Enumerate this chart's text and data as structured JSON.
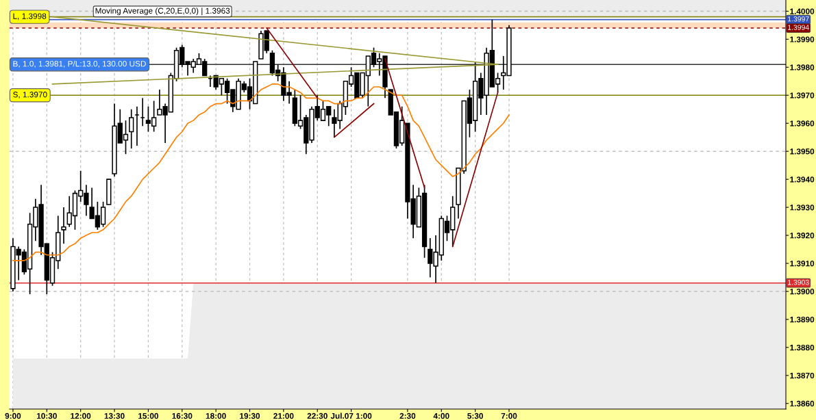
{
  "chart_data": {
    "type": "candlestick",
    "categories": [
      "9:00",
      null,
      null,
      null,
      null,
      null,
      "10:30",
      null,
      null,
      null,
      null,
      null,
      "12:00",
      null,
      null,
      null,
      null,
      null,
      "13:30",
      null,
      null,
      null,
      null,
      null,
      "15:00",
      null,
      null,
      null,
      null,
      null,
      "16:30",
      null,
      null,
      null,
      null,
      null,
      "18:00",
      null,
      null,
      null,
      null,
      null,
      "19:30",
      null,
      null,
      null,
      null,
      null,
      "21:00",
      null,
      null,
      null,
      null,
      null,
      "22:30",
      null,
      null,
      null,
      null,
      null,
      "Jul.07 1:00",
      null,
      null,
      null,
      null,
      null,
      null,
      null,
      null,
      null,
      "2:30",
      null,
      null,
      null,
      null,
      null,
      "4:00",
      null,
      null,
      null,
      null,
      null,
      "5:30",
      null,
      null,
      null,
      null,
      null,
      "7:00",
      null,
      null,
      null,
      null,
      null,
      null,
      null,
      null,
      null,
      null,
      null,
      null,
      null,
      null,
      null,
      null,
      null,
      null,
      null,
      null,
      null,
      null,
      null,
      null,
      null,
      null,
      null,
      null,
      null,
      null,
      null,
      null,
      null,
      null,
      null,
      null,
      null,
      null,
      null,
      null,
      null,
      null,
      null,
      null,
      null,
      null,
      null,
      null,
      null
    ],
    "ohlc": [
      [
        1.3901,
        1.3919,
        1.39,
        1.3916
      ],
      [
        1.3915,
        1.3916,
        1.3904,
        1.3913
      ],
      [
        1.3914,
        1.3915,
        1.3906,
        1.3907
      ],
      [
        1.3908,
        1.3928,
        1.3899,
        1.3924
      ],
      [
        1.3923,
        1.3933,
        1.3918,
        1.393
      ],
      [
        1.3931,
        1.3938,
        1.3913,
        1.3916
      ],
      [
        1.3917,
        1.3917,
        1.3899,
        1.3904
      ],
      [
        1.3903,
        1.3914,
        1.3902,
        1.3912
      ],
      [
        1.3911,
        1.3927,
        1.3908,
        1.3921
      ],
      [
        1.3922,
        1.393,
        1.3917,
        1.3923
      ],
      [
        1.3924,
        1.3934,
        1.3923,
        1.3928
      ],
      [
        1.3927,
        1.3936,
        1.3922,
        1.3935
      ],
      [
        1.3934,
        1.3943,
        1.3932,
        1.3936
      ],
      [
        1.3935,
        1.3938,
        1.3927,
        1.3931
      ],
      [
        1.393,
        1.3937,
        1.3926,
        1.3926
      ],
      [
        1.3927,
        1.3932,
        1.3922,
        1.3923
      ],
      [
        1.3924,
        1.3932,
        1.3923,
        1.393
      ],
      [
        1.3931,
        1.394,
        1.3931,
        1.394
      ],
      [
        1.3942,
        1.3967,
        1.3941,
        1.3959
      ],
      [
        1.396,
        1.3965,
        1.3953,
        1.3953
      ],
      [
        1.3954,
        1.3961,
        1.3949,
        1.3956
      ],
      [
        1.3957,
        1.3965,
        1.3951,
        1.3962
      ],
      [
        1.3963,
        1.3966,
        1.3952,
        1.3963
      ],
      [
        1.3962,
        1.3969,
        1.3959,
        1.3962
      ],
      [
        1.3961,
        1.3966,
        1.3957,
        1.396
      ],
      [
        1.3959,
        1.3968,
        1.3957,
        1.3962
      ],
      [
        1.3963,
        1.3972,
        1.3963,
        1.3965
      ],
      [
        1.3966,
        1.3967,
        1.3953,
        1.3963
      ],
      [
        1.3964,
        1.3978,
        1.3964,
        1.3977
      ],
      [
        1.3976,
        1.3987,
        1.3975,
        1.3986
      ],
      [
        1.3987,
        1.3988,
        1.398,
        1.3981
      ],
      [
        1.3982,
        1.3982,
        1.3977,
        1.3981
      ],
      [
        1.398,
        1.3983,
        1.3978,
        1.3982
      ],
      [
        1.3981,
        1.3985,
        1.3981,
        1.3983
      ],
      [
        1.3982,
        1.3983,
        1.3977,
        1.3977
      ],
      [
        1.3976,
        1.3977,
        1.3973,
        1.3976
      ],
      [
        1.3977,
        1.3977,
        1.3972,
        1.3973
      ],
      [
        1.3974,
        1.3976,
        1.397,
        1.3976
      ],
      [
        1.3975,
        1.3976,
        1.3967,
        1.3971
      ],
      [
        1.3972,
        1.3972,
        1.3964,
        1.3966
      ],
      [
        1.3965,
        1.3976,
        1.3965,
        1.3975
      ],
      [
        1.3974,
        1.3975,
        1.3971,
        1.3972
      ],
      [
        1.3973,
        1.3976,
        1.3965,
        1.3968
      ],
      [
        1.3967,
        1.3982,
        1.3967,
        1.3982
      ],
      [
        1.3983,
        1.3993,
        1.3983,
        1.3992
      ],
      [
        1.3993,
        1.3993,
        1.3985,
        1.3986
      ],
      [
        1.3985,
        1.3986,
        1.3977,
        1.3978
      ],
      [
        1.3979,
        1.3981,
        1.3975,
        1.3977
      ],
      [
        1.3978,
        1.398,
        1.3968,
        1.397
      ],
      [
        1.3971,
        1.3975,
        1.3967,
        1.397
      ],
      [
        1.3969,
        1.3972,
        1.3959,
        1.396
      ],
      [
        1.3959,
        1.397,
        1.3958,
        1.3961
      ],
      [
        1.3962,
        1.3963,
        1.3949,
        1.3953
      ],
      [
        1.3954,
        1.3966,
        1.3953,
        1.3965
      ],
      [
        1.3966,
        1.397,
        1.3961,
        1.3962
      ],
      [
        1.3961,
        1.3968,
        1.3961,
        1.3965
      ],
      [
        1.3966,
        1.3966,
        1.3959,
        1.3963
      ],
      [
        1.3962,
        1.3965,
        1.3955,
        1.396
      ],
      [
        1.3961,
        1.3968,
        1.3958,
        1.3967
      ],
      [
        1.3966,
        1.3975,
        1.3963,
        1.3975
      ],
      [
        1.3974,
        1.398,
        1.3973,
        1.3977
      ],
      [
        1.3978,
        1.3978,
        1.3969,
        1.3969
      ],
      [
        1.397,
        1.3978,
        1.3969,
        1.3978
      ],
      [
        1.3977,
        1.3984,
        1.3966,
        1.3984
      ],
      [
        1.3985,
        1.3987,
        1.398,
        1.3981
      ],
      [
        1.3982,
        1.3985,
        1.3977,
        1.3983
      ],
      [
        1.3984,
        1.3984,
        1.3969,
        1.3973
      ],
      [
        1.3972,
        1.3972,
        1.3963,
        1.3963
      ],
      [
        1.3964,
        1.3964,
        1.3951,
        1.3952
      ],
      [
        1.3953,
        1.3966,
        1.3952,
        1.3961
      ],
      [
        1.396,
        1.396,
        1.3926,
        1.3932
      ],
      [
        1.3933,
        1.3938,
        1.3919,
        1.3924
      ],
      [
        1.3923,
        1.3937,
        1.3923,
        1.3934
      ],
      [
        1.3935,
        1.3938,
        1.3912,
        1.3916
      ],
      [
        1.3915,
        1.3919,
        1.3905,
        1.391
      ],
      [
        1.3909,
        1.392,
        1.3903,
        1.3914
      ],
      [
        1.3913,
        1.3927,
        1.3911,
        1.3926
      ],
      [
        1.3925,
        1.3927,
        1.3918,
        1.3921
      ],
      [
        1.3922,
        1.3934,
        1.3916,
        1.393
      ],
      [
        1.3931,
        1.3944,
        1.3926,
        1.3944
      ],
      [
        1.3943,
        1.3968,
        1.3942,
        1.3968
      ],
      [
        1.3969,
        1.3972,
        1.3955,
        1.396
      ],
      [
        1.3961,
        1.3982,
        1.3957,
        1.3975
      ],
      [
        1.3976,
        1.3978,
        1.3963,
        1.3969
      ],
      [
        1.397,
        1.3987,
        1.3963,
        1.3985
      ],
      [
        1.3986,
        1.3997,
        1.3973,
        1.3973
      ],
      [
        1.3974,
        1.3978,
        1.3971,
        1.3976
      ],
      [
        1.3977,
        1.3984,
        1.3972,
        1.3978
      ],
      [
        1.3977,
        1.3995,
        1.3977,
        1.3994
      ],
      null,
      null,
      null,
      null,
      null,
      null,
      null,
      null,
      null,
      null,
      null,
      null,
      null,
      null,
      null,
      null,
      null,
      null,
      null,
      null,
      null,
      null,
      null,
      null,
      null,
      null,
      null,
      null,
      null,
      null,
      null,
      null,
      null,
      null,
      null,
      null,
      null,
      null,
      null,
      null,
      null,
      null,
      null,
      null,
      null,
      null,
      null,
      null,
      null
    ],
    "series": [
      {
        "type": "area",
        "color": "#ececec",
        "values": [
          1.3876,
          1.3876,
          1.3876,
          1.3876,
          1.3876,
          1.3876,
          1.3876,
          1.3876,
          1.3876,
          1.3876,
          1.3876,
          1.3876,
          1.3876,
          1.3876,
          1.3876,
          1.3876,
          1.3876,
          1.3876,
          1.3876,
          1.3876,
          1.3876,
          1.3876,
          1.3876,
          1.3876,
          1.3876,
          1.3876,
          1.3876,
          1.3876,
          1.3876,
          1.3876,
          1.3876,
          1.3876,
          1.3903,
          1.3903,
          1.3903,
          1.3903,
          1.3903,
          1.3903,
          1.3903,
          1.3903,
          1.3903,
          1.3903,
          1.3903,
          1.3903,
          1.3903,
          1.3903,
          1.3903,
          1.3903,
          1.3903,
          1.3903,
          1.3903,
          1.3903,
          1.3903,
          1.3903,
          1.3903,
          1.3903,
          1.3903,
          1.3903,
          1.3903,
          1.3903,
          1.3903,
          1.3903,
          1.3903,
          1.3903,
          1.3903,
          1.3903,
          1.3903,
          1.3903,
          1.3903,
          1.3903,
          1.3903,
          1.3903,
          1.3903,
          1.3903,
          1.3903,
          1.3903,
          1.3903,
          1.3903,
          1.3903,
          1.3903,
          1.3903,
          1.3903,
          1.3903,
          1.3903,
          1.3903,
          1.3903,
          1.3903,
          1.3903,
          1.3903,
          1.3903,
          1.3903,
          1.3903,
          1.3903,
          1.3903,
          1.3903,
          1.3903,
          1.3903,
          1.3903,
          1.3903,
          1.3903,
          1.3903,
          1.3903,
          1.3903,
          1.3903,
          1.3903,
          1.3903,
          1.3903,
          1.3903,
          1.3903,
          1.3903,
          1.3903,
          1.3903,
          1.3903,
          1.3903,
          1.3903,
          1.3903,
          1.3903,
          1.3903,
          1.3903,
          1.3903,
          1.3903,
          1.3903,
          1.3903,
          1.3903,
          1.3903,
          1.3903,
          1.3903,
          1.3903,
          1.3903,
          1.3903,
          1.3903,
          1.3903,
          1.3903,
          1.3903,
          1.3903,
          1.3903,
          1.3903,
          1.3903
        ]
      },
      {
        "type": "line",
        "color": "#ff8000",
        "values": [
          1.3911,
          1.3911,
          1.3911,
          1.3912,
          1.3914,
          1.3914,
          1.3913,
          1.3913,
          1.3913,
          1.3914,
          1.3916,
          1.3917,
          1.3919,
          1.392,
          1.3921,
          1.3921,
          1.3922,
          1.3924,
          1.3926,
          1.3929,
          1.3932,
          1.3934,
          1.3937,
          1.394,
          1.3942,
          1.3944,
          1.3946,
          1.3949,
          1.3952,
          1.3955,
          1.3957,
          1.396,
          1.3961,
          1.3963,
          1.3964,
          1.3966,
          1.3967,
          1.3967,
          1.3968,
          1.3967,
          1.3968,
          1.3968,
          1.3968,
          1.397,
          1.3972,
          1.3973,
          1.3974,
          1.3974,
          1.3973,
          1.3973,
          1.3972,
          1.3971,
          1.3969,
          1.3969,
          1.3969,
          1.3968,
          1.3968,
          1.3967,
          1.3967,
          1.3968,
          1.3968,
          1.3969,
          1.3969,
          1.3971,
          1.3973,
          1.3973,
          1.3972,
          1.3971,
          1.397,
          1.397,
          1.3966,
          1.3961,
          1.3959,
          1.3955,
          1.3951,
          1.3947,
          1.3945,
          1.3943,
          1.3941,
          1.3942,
          1.3944,
          1.3946,
          1.3949,
          1.3951,
          1.3954,
          1.3956,
          1.3958,
          1.396,
          1.3963,
          null,
          null,
          null,
          null,
          null,
          null,
          null,
          null,
          null,
          null,
          null,
          null,
          null,
          null,
          null,
          null,
          null,
          null,
          null,
          null,
          null,
          null,
          null,
          null,
          null,
          null,
          null,
          null,
          null,
          null,
          null,
          null,
          null,
          null,
          null,
          null,
          null,
          null,
          null,
          null,
          null,
          null,
          null,
          null,
          null,
          null,
          null,
          null,
          null
        ]
      },
      {
        "type": "line",
        "color": "#999933",
        "values": [
          null,
          null,
          null,
          null,
          null,
          null,
          null,
          1.3998,
          null,
          null,
          null,
          null,
          null,
          null,
          null,
          null,
          null,
          null,
          null,
          null,
          null,
          null,
          null,
          null,
          null,
          null,
          null,
          null,
          null,
          null,
          null,
          null,
          null,
          null,
          null,
          null,
          null,
          null,
          null,
          null,
          null,
          null,
          null,
          null,
          null,
          null,
          null,
          null,
          null,
          null,
          null,
          null,
          null,
          null,
          null,
          null,
          null,
          null,
          null,
          null,
          null,
          null,
          null,
          null,
          null,
          null,
          null,
          null,
          null,
          null,
          null,
          null,
          null,
          null,
          null,
          null,
          null,
          null,
          null,
          null,
          null,
          null,
          null,
          null,
          null,
          null,
          1.3981,
          null,
          null,
          null,
          null,
          null,
          null,
          null,
          null,
          null,
          null,
          null,
          null,
          null,
          null,
          null,
          null,
          null,
          null,
          null,
          null,
          null,
          null,
          null,
          null,
          null,
          null,
          null,
          null,
          null,
          null,
          null,
          null,
          null,
          null,
          null,
          null,
          null,
          null,
          null,
          null,
          null,
          null,
          null,
          null,
          null,
          null,
          null,
          null,
          null,
          null,
          null
        ]
      },
      {
        "type": "line",
        "color": "#999933",
        "values": [
          null,
          null,
          null,
          null,
          null,
          null,
          null,
          1.3974,
          null,
          null,
          null,
          null,
          null,
          null,
          null,
          null,
          null,
          null,
          null,
          null,
          null,
          null,
          null,
          null,
          null,
          null,
          null,
          null,
          null,
          null,
          null,
          null,
          null,
          null,
          null,
          null,
          null,
          null,
          null,
          null,
          null,
          null,
          null,
          null,
          null,
          null,
          null,
          null,
          null,
          null,
          null,
          null,
          null,
          null,
          null,
          null,
          null,
          null,
          null,
          null,
          null,
          null,
          null,
          null,
          null,
          null,
          null,
          null,
          null,
          null,
          null,
          null,
          null,
          null,
          null,
          null,
          null,
          null,
          null,
          null,
          null,
          null,
          null,
          null,
          null,
          null,
          1.3981,
          null,
          null,
          null,
          null,
          null,
          null,
          null,
          null,
          null,
          null,
          null,
          null,
          null,
          null,
          null,
          null,
          null,
          null,
          null,
          null,
          null,
          null,
          null,
          null,
          null,
          null,
          null,
          null,
          null,
          null,
          null,
          null,
          null,
          null,
          null,
          null,
          null,
          null,
          null,
          null,
          null,
          null,
          null,
          null,
          null,
          null,
          null,
          null,
          null,
          null,
          null
        ]
      },
      {
        "type": "line",
        "color": "#8b0000",
        "values": [
          null,
          null,
          null,
          null,
          null,
          null,
          null,
          null,
          null,
          null,
          null,
          null,
          null,
          null,
          null,
          null,
          null,
          null,
          null,
          null,
          null,
          null,
          null,
          null,
          null,
          null,
          null,
          null,
          null,
          null,
          null,
          null,
          null,
          null,
          null,
          null,
          null,
          null,
          null,
          null,
          null,
          null,
          null,
          null,
          null,
          1.3994,
          null,
          null,
          null,
          null,
          null,
          null,
          null,
          null,
          1.3969,
          null,
          null,
          null,
          null,
          null,
          null,
          null,
          null,
          null,
          null,
          null,
          null,
          null,
          null,
          null,
          null,
          null,
          null,
          null,
          null,
          null,
          null,
          null,
          null,
          null,
          null,
          null,
          null,
          null,
          null,
          null,
          null,
          null,
          null,
          null,
          null,
          null,
          null,
          null,
          null,
          null,
          null,
          null,
          null,
          null,
          null,
          null,
          null,
          null,
          null,
          null,
          null,
          null,
          null,
          null,
          null,
          null,
          null,
          null,
          null,
          null,
          null,
          null,
          null,
          null,
          null,
          null,
          null,
          null,
          null,
          null,
          null,
          null,
          null,
          null,
          null,
          null,
          null,
          null,
          null,
          null,
          null,
          null
        ]
      },
      {
        "type": "line",
        "color": "#8b0000",
        "values": [
          null,
          null,
          null,
          null,
          null,
          null,
          null,
          null,
          null,
          null,
          null,
          null,
          null,
          null,
          null,
          null,
          null,
          null,
          null,
          null,
          null,
          null,
          null,
          null,
          null,
          null,
          null,
          null,
          null,
          null,
          null,
          null,
          null,
          null,
          null,
          null,
          null,
          null,
          null,
          null,
          null,
          null,
          null,
          null,
          null,
          null,
          null,
          null,
          null,
          null,
          null,
          null,
          null,
          null,
          null,
          null,
          null,
          1.3955,
          null,
          null,
          null,
          null,
          null,
          null,
          1.3967,
          null,
          null,
          null,
          null,
          null,
          null,
          null,
          null,
          null,
          null,
          null,
          null,
          null,
          null,
          null,
          null,
          null,
          null,
          null,
          null,
          null,
          null,
          null,
          null,
          null,
          null,
          null,
          null,
          null,
          null,
          null,
          null,
          null,
          null,
          null,
          null,
          null,
          null,
          null,
          null,
          null,
          null,
          null,
          null,
          null,
          null,
          null,
          null,
          null,
          null,
          null,
          null,
          null,
          null,
          null,
          null,
          null,
          null,
          null,
          null,
          null,
          null,
          null,
          null,
          null,
          null,
          null,
          null,
          null,
          null,
          null,
          null,
          null
        ]
      },
      {
        "type": "line",
        "color": "#8b0000",
        "values": [
          null,
          null,
          null,
          null,
          null,
          null,
          null,
          null,
          null,
          null,
          null,
          null,
          null,
          null,
          null,
          null,
          null,
          null,
          null,
          null,
          null,
          null,
          null,
          null,
          null,
          null,
          null,
          null,
          null,
          null,
          null,
          null,
          null,
          null,
          null,
          null,
          null,
          null,
          null,
          null,
          null,
          null,
          null,
          null,
          null,
          null,
          null,
          null,
          null,
          null,
          null,
          null,
          null,
          null,
          null,
          null,
          null,
          null,
          null,
          null,
          null,
          null,
          null,
          null,
          null,
          null,
          1.3983,
          null,
          null,
          null,
          null,
          null,
          null,
          1.3937,
          null,
          null,
          null,
          null,
          null,
          null,
          null,
          null,
          null,
          null,
          null,
          null,
          null,
          null,
          null,
          null,
          null,
          null,
          null,
          null,
          null,
          null,
          null,
          null,
          null,
          null,
          null,
          null,
          null,
          null,
          null,
          null,
          null,
          null,
          null,
          null,
          null,
          null,
          null,
          null,
          null,
          null,
          null,
          null,
          null,
          null,
          null,
          null,
          null,
          null,
          null,
          null,
          null,
          null,
          null,
          null,
          null,
          null,
          null,
          null,
          null,
          null,
          null,
          null
        ]
      },
      {
        "type": "line",
        "color": "#8b0000",
        "values": [
          null,
          null,
          null,
          null,
          null,
          null,
          null,
          null,
          null,
          null,
          null,
          null,
          null,
          null,
          null,
          null,
          null,
          null,
          null,
          null,
          null,
          null,
          null,
          null,
          null,
          null,
          null,
          null,
          null,
          null,
          null,
          null,
          null,
          null,
          null,
          null,
          null,
          null,
          null,
          null,
          null,
          null,
          null,
          null,
          null,
          null,
          null,
          null,
          null,
          null,
          null,
          null,
          null,
          null,
          null,
          null,
          null,
          null,
          null,
          null,
          null,
          null,
          null,
          null,
          null,
          null,
          null,
          null,
          null,
          null,
          null,
          null,
          null,
          null,
          null,
          null,
          null,
          null,
          1.3916,
          null,
          null,
          null,
          null,
          null,
          null,
          null,
          1.3971,
          null,
          null,
          null,
          null,
          null,
          null,
          null,
          null,
          null,
          null,
          null,
          null,
          null,
          null,
          null,
          null,
          null,
          null,
          null,
          null,
          null,
          null,
          null,
          null,
          null,
          null,
          null,
          null,
          null,
          null,
          null,
          null,
          null,
          null,
          null,
          null,
          null,
          null,
          null,
          null,
          null,
          null,
          null,
          null,
          null,
          null,
          null,
          null,
          null,
          null,
          null
        ]
      }
    ],
    "ylim": [
      1.3858,
      1.4004
    ],
    "yticks": [
      {
        "value": 1.386,
        "label": "1.3860"
      },
      {
        "value": 1.387,
        "label": "1.3870"
      },
      {
        "value": 1.388,
        "label": "1.3880"
      },
      {
        "value": 1.389,
        "label": "1.3890"
      },
      {
        "value": 1.39,
        "label": "1.3900"
      },
      {
        "value": 1.391,
        "label": "1.3910"
      },
      {
        "value": 1.392,
        "label": "1.3920"
      },
      {
        "value": 1.393,
        "label": "1.3930"
      },
      {
        "value": 1.394,
        "label": "1.3940"
      },
      {
        "value": 1.395,
        "label": "1.3950"
      },
      {
        "value": 1.396,
        "label": "1.3960"
      },
      {
        "value": 1.397,
        "label": "1.3970"
      },
      {
        "value": 1.398,
        "label": "1.3980"
      },
      {
        "value": 1.399,
        "label": "1.3990"
      },
      {
        "value": 1.4,
        "label": "1.4000"
      }
    ],
    "grid": "x",
    "bands": [
      {
        "axis": "y",
        "from": 1.3997,
        "to": 1.4004,
        "color": "#ececec"
      },
      {
        "axis": "y",
        "from": 1.3994,
        "to": 1.3996,
        "color": "#ffdcc0"
      }
    ],
    "ref_lines": [
      {
        "axis": "y",
        "value": 1.4,
        "color": "#c0c0c0",
        "line_style": "dashed"
      },
      {
        "axis": "y",
        "value": 1.395,
        "color": "#c0c0c0",
        "line_style": "dashed"
      },
      {
        "axis": "y",
        "value": 1.39,
        "color": "#c0c0c0",
        "line_style": "dashed"
      },
      {
        "axis": "y",
        "value": 1.3998,
        "color": "#808000"
      },
      {
        "axis": "y",
        "value": 1.3997,
        "label": "1.3997",
        "color": "#3050c0"
      },
      {
        "axis": "y",
        "value": 1.3994,
        "label": "1.3994",
        "color": "#8b0000",
        "line_style": "dashed"
      },
      {
        "axis": "y",
        "value": 1.3981,
        "color": "#303030"
      },
      {
        "axis": "y",
        "value": 1.397,
        "color": "#808000"
      },
      {
        "axis": "y",
        "value": 1.3903,
        "label": "1.3903",
        "color": "#e02828"
      }
    ],
    "annotations": [
      "Moving Average (C,20,E,0,0) | 1.3963",
      {
        "text": "L, 1.3998",
        "y": 1.3998
      },
      {
        "text": "B, 1.0, 1.3981, P/L:13.0, 130.00 USD",
        "y": 1.3981
      },
      {
        "text": "S, 1.3970",
        "y": 1.397
      }
    ]
  }
}
